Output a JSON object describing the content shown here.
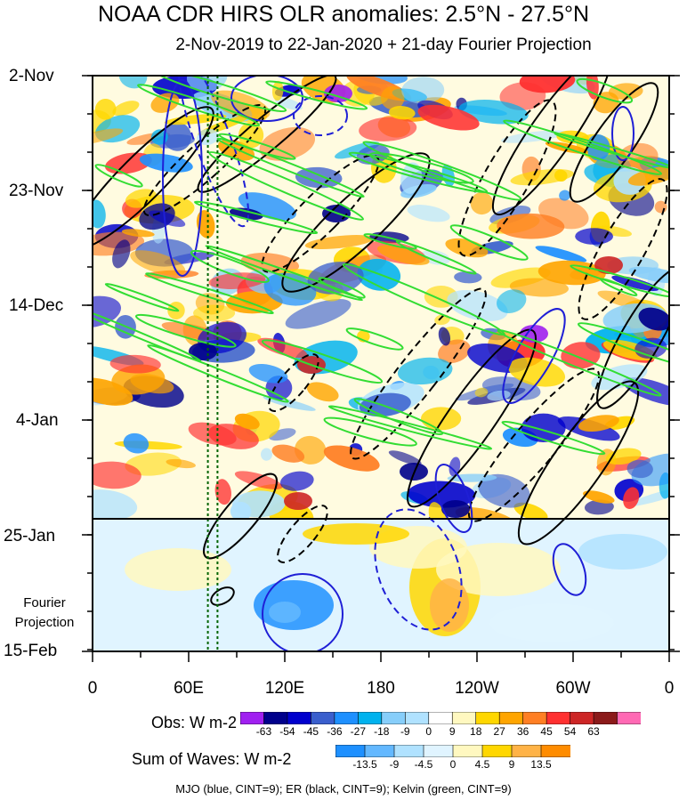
{
  "chart_data": {
    "type": "heatmap",
    "title": "NOAA CDR HIRS OLR anomalies: 2.5°N - 27.5°N",
    "subtitle": "2-Nov-2019 to 22-Jan-2020 + 21-day Fourier Projection",
    "y_axis": {
      "labels": [
        "2-Nov",
        "23-Nov",
        "14-Dec",
        "4-Jan",
        "25-Jan",
        "15-Feb"
      ],
      "projection_label_line1": "Fourier",
      "projection_label_line2": "Projection"
    },
    "x_axis": {
      "labels": [
        "0",
        "60E",
        "120E",
        "180",
        "120W",
        "60W",
        "0"
      ],
      "range_degrees_east": [
        0,
        360
      ]
    },
    "observation_end": "22-Jan-2020",
    "obs_colorbar": {
      "name": "Obs: W m-2",
      "levels": [
        "-63",
        "-54",
        "-45",
        "-36",
        "-27",
        "-18",
        "-9",
        "0",
        "9",
        "18",
        "27",
        "36",
        "45",
        "54",
        "63"
      ],
      "colors": [
        "#a020f0",
        "#00008b",
        "#0000cd",
        "#3a5fcd",
        "#1e90ff",
        "#00b2ee",
        "#87cefa",
        "#b0e2ff",
        "#ffffff",
        "#fff8c0",
        "#ffd700",
        "#ffa500",
        "#ff7f24",
        "#ff3030",
        "#cd2626",
        "#8b1a1a",
        "#ff69b4"
      ]
    },
    "waves_colorbar": {
      "name": "Sum of Waves: W m-2",
      "levels": [
        "-13.5",
        "-9",
        "-4.5",
        "0",
        "4.5",
        "9",
        "13.5"
      ],
      "colors": [
        "#1e90ff",
        "#63b8ff",
        "#b0e2ff",
        "#e0f4ff",
        "#fff8c0",
        "#ffd700",
        "#ffb347",
        "#ff8c00"
      ]
    },
    "contours_caption": "MJO (blue, CINT=9); ER (black, CINT=9); Kelvin (green, CINT=9)",
    "series": [
      {
        "name": "MJO",
        "color": "#1f1fd6",
        "cint": 9
      },
      {
        "name": "ER",
        "color": "#000000",
        "cint": 9
      },
      {
        "name": "Kelvin",
        "color": "#33dd33",
        "cint": 9
      }
    ],
    "reference_longitudes_deg_east": [
      72,
      78
    ]
  }
}
